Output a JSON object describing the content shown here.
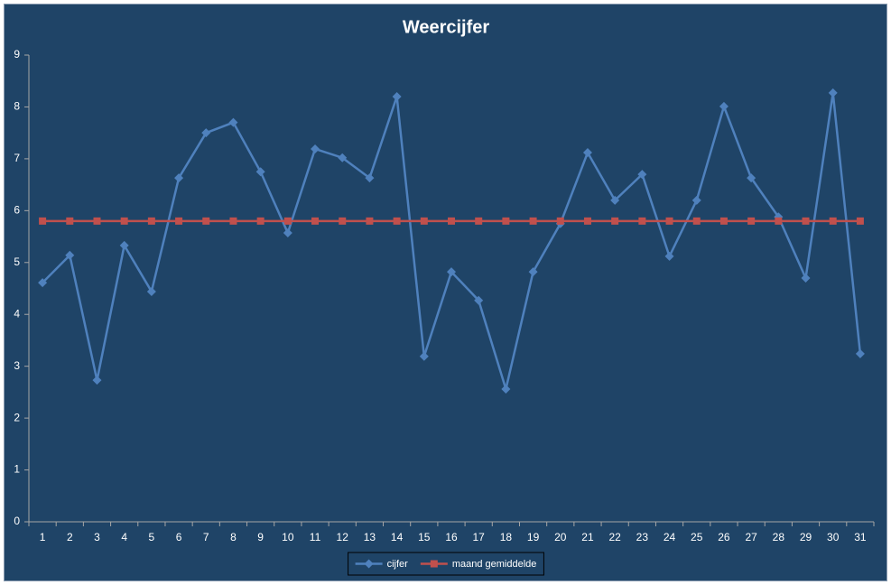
{
  "chart_data": {
    "type": "line",
    "title": "Weercijfer",
    "categories": [
      "1",
      "2",
      "3",
      "4",
      "5",
      "6",
      "7",
      "8",
      "9",
      "10",
      "11",
      "12",
      "13",
      "14",
      "15",
      "16",
      "17",
      "18",
      "19",
      "20",
      "21",
      "22",
      "23",
      "24",
      "25",
      "26",
      "27",
      "28",
      "29",
      "30",
      "31"
    ],
    "series": [
      {
        "name": "cijfer",
        "color": "#4f81bd",
        "marker": "diamond",
        "values": [
          4.61,
          5.14,
          2.73,
          5.33,
          4.44,
          6.63,
          7.5,
          7.7,
          6.75,
          5.57,
          7.19,
          7.02,
          6.63,
          8.2,
          3.19,
          4.82,
          4.27,
          2.56,
          4.82,
          5.75,
          7.12,
          6.2,
          6.7,
          5.12,
          6.2,
          8.01,
          6.63,
          5.88,
          4.7,
          8.27,
          3.24
        ]
      },
      {
        "name": "maand gemiddelde",
        "color": "#c0504d",
        "marker": "square",
        "values": [
          5.8,
          5.8,
          5.8,
          5.8,
          5.8,
          5.8,
          5.8,
          5.8,
          5.8,
          5.8,
          5.8,
          5.8,
          5.8,
          5.8,
          5.8,
          5.8,
          5.8,
          5.8,
          5.8,
          5.8,
          5.8,
          5.8,
          5.8,
          5.8,
          5.8,
          5.8,
          5.8,
          5.8,
          5.8,
          5.8,
          5.8
        ]
      }
    ],
    "ylim": [
      0,
      9
    ],
    "yticks": [
      0,
      1,
      2,
      3,
      4,
      5,
      6,
      7,
      8,
      9
    ],
    "legend": "bottom"
  }
}
